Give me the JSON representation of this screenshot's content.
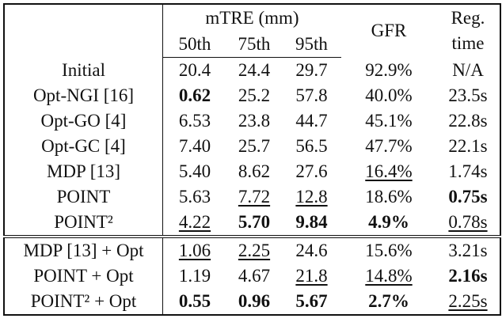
{
  "table": {
    "header": {
      "group": "mTRE (mm)",
      "columns": [
        "50th",
        "75th",
        "95th"
      ],
      "gfr": "GFR",
      "reg_time": [
        "Reg.",
        "time"
      ]
    },
    "groups": [
      [
        [
          "Initial",
          "20.4",
          "24.4",
          "29.7",
          "92.9%",
          "N/A"
        ],
        [
          "Opt-NGI [16]",
          {
            "text": "0.62",
            "bold": true
          },
          "25.2",
          "57.8",
          "40.0%",
          "23.5s"
        ],
        [
          "Opt-GO [4]",
          "6.53",
          "23.8",
          "44.7",
          "45.1%",
          "22.8s"
        ],
        [
          "Opt-GC [4]",
          "7.40",
          "25.7",
          "56.5",
          "47.7%",
          "22.1s"
        ],
        [
          "MDP [13]",
          "5.40",
          "8.62",
          "27.6",
          {
            "text": "16.4%",
            "underline": true
          },
          "1.74s"
        ],
        [
          "POINT",
          "5.63",
          {
            "text": "7.72",
            "underline": true
          },
          {
            "text": "12.8",
            "underline": true
          },
          "18.6%",
          {
            "text": "0.75s",
            "bold": true
          }
        ],
        [
          "POINT²",
          {
            "text": "4.22",
            "underline": true
          },
          {
            "text": "5.70",
            "bold": true
          },
          {
            "text": "9.84",
            "bold": true
          },
          {
            "text": "4.9%",
            "bold": true
          },
          {
            "text": "0.78s",
            "underline": true
          }
        ]
      ],
      [
        [
          "MDP [13] + Opt",
          {
            "text": "1.06",
            "underline": true
          },
          {
            "text": "2.25",
            "underline": true
          },
          "24.6",
          "15.6%",
          "3.21s"
        ],
        [
          "POINT + Opt",
          "1.19",
          "4.67",
          {
            "text": "21.8",
            "underline": true
          },
          {
            "text": "14.8%",
            "underline": true
          },
          {
            "text": "2.16s",
            "bold": true
          }
        ],
        [
          "POINT² + Opt",
          {
            "text": "0.55",
            "bold": true
          },
          {
            "text": "0.96",
            "bold": true
          },
          {
            "text": "5.67",
            "bold": true
          },
          {
            "text": "2.7%",
            "bold": true
          },
          {
            "text": "2.25s",
            "underline": true
          }
        ]
      ]
    ]
  }
}
